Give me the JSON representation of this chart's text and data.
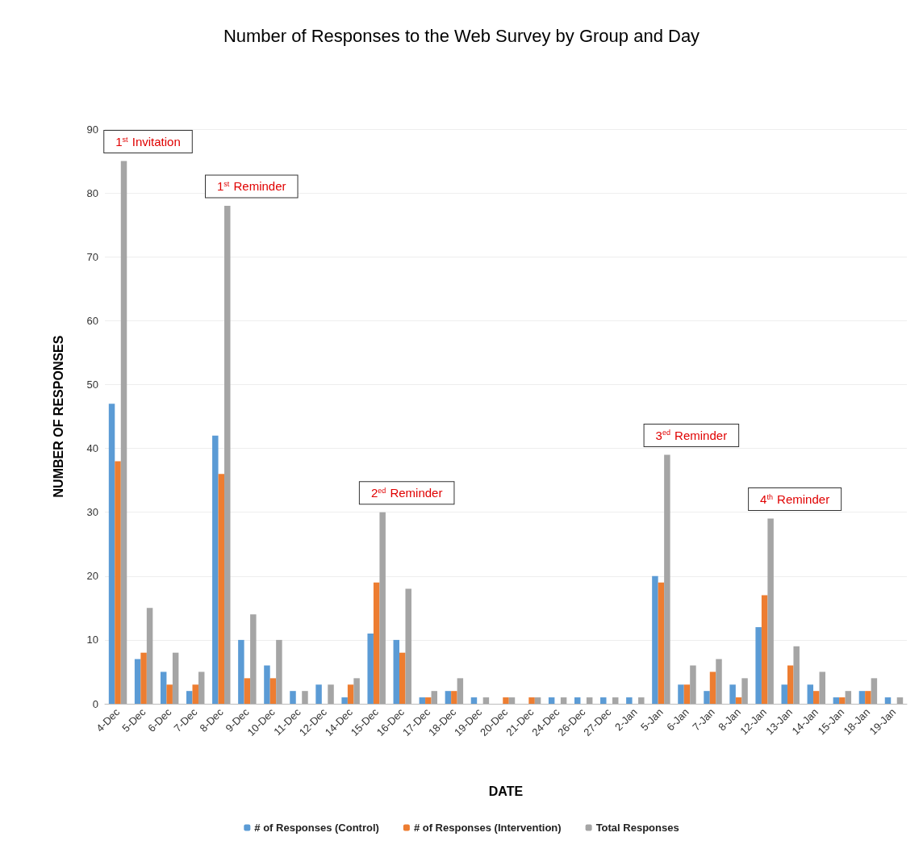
{
  "chart_data": {
    "type": "bar",
    "title": "Number of Responses to the Web Survey by Group and Day",
    "xlabel": "DATE",
    "ylabel": "NUMBER OF RESPONSES",
    "categories": [
      "4-Dec",
      "5-Dec",
      "6-Dec",
      "7-Dec",
      "8-Dec",
      "9-Dec",
      "10-Dec",
      "11-Dec",
      "12-Dec",
      "14-Dec",
      "15-Dec",
      "16-Dec",
      "17-Dec",
      "18-Dec",
      "19-Dec",
      "20-Dec",
      "21-Dec",
      "24-Dec",
      "26-Dec",
      "27-Dec",
      "2-Jan",
      "5-Jan",
      "6-Jan",
      "7-Jan",
      "8-Jan",
      "12-Jan",
      "13-Jan",
      "14-Jan",
      "15-Jan",
      "18-Jan",
      "19-Jan"
    ],
    "series": [
      {
        "name": "# of Responses (Control)",
        "color": "#5b9bd5",
        "values": [
          47,
          7,
          5,
          2,
          42,
          10,
          6,
          2,
          3,
          1,
          11,
          10,
          1,
          2,
          1,
          0,
          0,
          1,
          1,
          1,
          1,
          20,
          3,
          2,
          3,
          12,
          3,
          3,
          1,
          2,
          1
        ]
      },
      {
        "name": "# of Responses (Intervention)",
        "color": "#ed7d31",
        "values": [
          38,
          8,
          3,
          3,
          36,
          4,
          4,
          0,
          0,
          3,
          19,
          8,
          1,
          2,
          0,
          1,
          1,
          0,
          0,
          0,
          0,
          19,
          3,
          5,
          1,
          17,
          6,
          2,
          1,
          2,
          0
        ]
      },
      {
        "name": "Total Responses",
        "color": "#a5a5a5",
        "values": [
          85,
          15,
          8,
          5,
          78,
          14,
          10,
          2,
          3,
          4,
          30,
          18,
          2,
          4,
          1,
          1,
          1,
          1,
          1,
          1,
          1,
          39,
          6,
          7,
          4,
          29,
          9,
          5,
          2,
          4,
          1
        ]
      }
    ],
    "ylim": [
      0,
      90
    ],
    "yticks": [
      0,
      10,
      20,
      30,
      40,
      50,
      60,
      70,
      80,
      90
    ],
    "grid": "y",
    "legend": "bottom",
    "annotations": [
      {
        "text": "1$^{st}$ Invitation",
        "x": "4-Dec",
        "y": 85
      },
      {
        "text": "1$^{st}$ Reminder",
        "x": "8-Dec",
        "y": 78
      },
      {
        "text": "2$^{ed}$ Reminder",
        "x": "15-Dec",
        "y": 30
      },
      {
        "text": "3$^{ed}$ Reminder",
        "x": "5-Jan",
        "y": 39
      },
      {
        "text": "4$^{th}$ Reminder",
        "x": "12-Jan",
        "y": 29
      }
    ]
  }
}
